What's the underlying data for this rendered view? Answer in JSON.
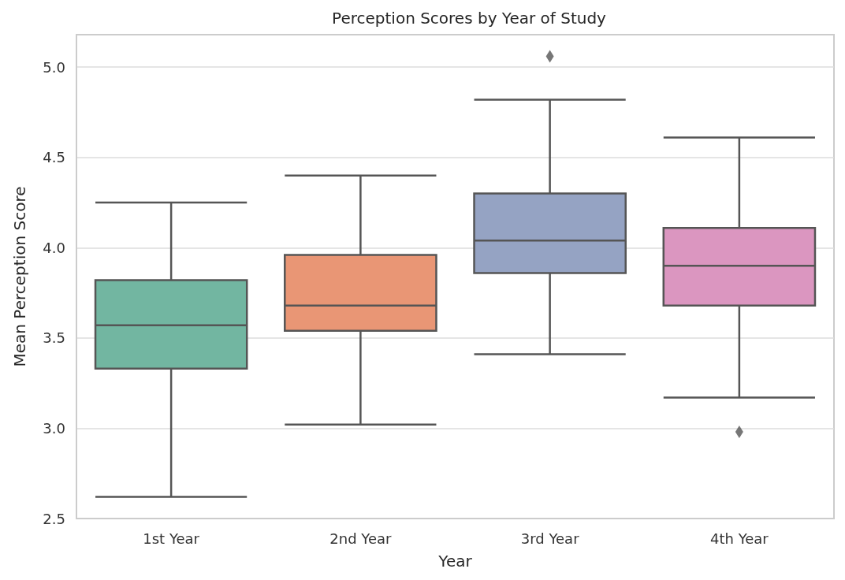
{
  "chart_data": {
    "type": "box",
    "title": "Perception Scores by Year of Study",
    "xlabel": "Year",
    "ylabel": "Mean Perception Score",
    "categories": [
      "1st Year",
      "2nd Year",
      "3rd Year",
      "4th Year"
    ],
    "boxes": [
      {
        "low": 2.62,
        "q1": 3.33,
        "median": 3.57,
        "q3": 3.82,
        "high": 4.25
      },
      {
        "low": 3.02,
        "q1": 3.54,
        "median": 3.68,
        "q3": 3.96,
        "high": 4.4
      },
      {
        "low": 3.41,
        "q1": 3.86,
        "median": 4.04,
        "q3": 4.3,
        "high": 4.82,
        "outliers": [
          5.06
        ]
      },
      {
        "low": 3.17,
        "q1": 3.68,
        "median": 3.9,
        "q3": 4.11,
        "high": 4.61,
        "outliers": [
          2.98
        ]
      }
    ],
    "colors": [
      "#72b6a1",
      "#e99675",
      "#95a3c3",
      "#db96c0"
    ],
    "ylim": [
      2.5,
      5.18
    ],
    "yticks": [
      2.5,
      {
        "value": 3,
        "label": "3.0"
      },
      3.5,
      {
        "value": 4,
        "label": "4.0"
      },
      4.5,
      {
        "value": 5,
        "label": "5.0"
      }
    ],
    "grid": "y",
    "marker": "diamond"
  }
}
